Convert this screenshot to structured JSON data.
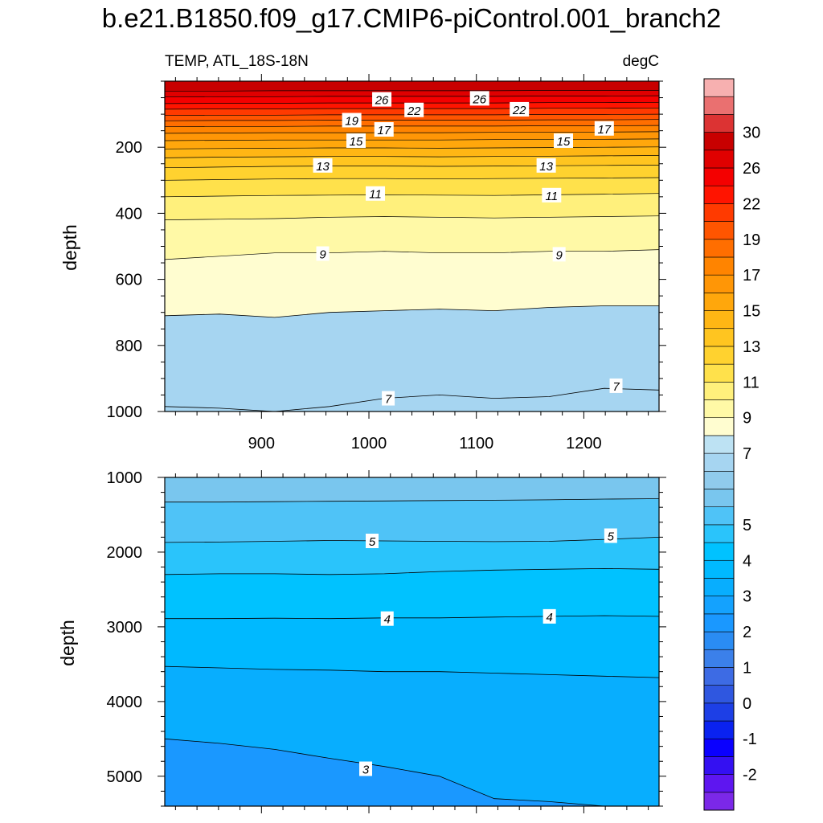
{
  "chart_data": {
    "type": "contour",
    "title": "b.e21.B1850.f09_g17.CMIP6-piControl.001_branch2",
    "left_string": "TEMP, ATL_18S-18N",
    "right_string": "degC",
    "x_range": [
      810,
      1270
    ],
    "x_ticks": [
      "900",
      "1000",
      "1100",
      "1200"
    ],
    "colorbar": {
      "levels": [
        -3,
        -2.5,
        -2,
        -1.5,
        -1,
        -0.5,
        0,
        0.5,
        1,
        1.5,
        2,
        2.5,
        3,
        3.5,
        4,
        4.5,
        5,
        5.5,
        6,
        6.5,
        7,
        8,
        9,
        10,
        11,
        12,
        13,
        14,
        15,
        16,
        17,
        18,
        19,
        20,
        22,
        24,
        26,
        28,
        30,
        32,
        34
      ],
      "labels": [
        "30",
        "26",
        "22",
        "19",
        "17",
        "15",
        "13",
        "11",
        "9",
        "7",
        "5",
        "4",
        "3",
        "2",
        "1",
        "0",
        "-1",
        "-2"
      ],
      "colors": [
        "#7b28e8",
        "#5e16f0",
        "#3410f2",
        "#0a00ff",
        "#0a22f0",
        "#1d3fe6",
        "#2f57e0",
        "#3d6be4",
        "#3b80ea",
        "#2a8cf3",
        "#1a98ff",
        "#14a2fe",
        "#08aefe",
        "#00b9ff",
        "#00c2ff",
        "#2ac4fb",
        "#4fc3f7",
        "#79c6ee",
        "#90cbec",
        "#a6d5f1",
        "#bde2f3",
        "#fffdd0",
        "#fff9a6",
        "#fff07c",
        "#ffe14b",
        "#ffd22f",
        "#ffc520",
        "#ffb614",
        "#ffa70c",
        "#ff9606",
        "#ff8400",
        "#ff6e00",
        "#ff5500",
        "#ff3a00",
        "#ff1400",
        "#f40000",
        "#e00000",
        "#c80000",
        "#dc3333",
        "#ea7070",
        "#f7b0b0"
      ]
    },
    "panels": [
      {
        "ylabel": "depth",
        "ylim": [
          0,
          1000
        ],
        "y_ticks": [
          "200",
          "400",
          "600",
          "800",
          "1000"
        ],
        "bottom_color": "#a6d5f1",
        "isolines": [
          {
            "v": 9,
            "y": [
              540,
              530,
              520,
              520,
              515,
              520,
              520,
              515,
              515,
              510
            ]
          },
          {
            "v": 10,
            "y": [
              420,
              418,
              416,
              412,
              410,
              412,
              414,
              412,
              410,
              408
            ]
          },
          {
            "v": 11,
            "y": [
              350,
              348,
              346,
              345,
              344,
              345,
              346,
              344,
              342,
              340
            ]
          },
          {
            "v": 12,
            "y": [
              300,
              298,
              296,
              295,
              295,
              296,
              295,
              294,
              293,
              292
            ]
          },
          {
            "v": 13,
            "y": [
              262,
              260,
              258,
              257,
              257,
              258,
              257,
              256,
              255,
              254
            ]
          },
          {
            "v": 14,
            "y": [
              232,
              230,
              229,
              228,
              228,
              229,
              228,
              227,
              226,
              225
            ]
          },
          {
            "v": 15,
            "y": [
              205,
              204,
              203,
              202,
              202,
              203,
              202,
              201,
              200,
              199
            ]
          },
          {
            "v": 16,
            "y": [
              180,
              179,
              178,
              178,
              178,
              178,
              177,
              176,
              176,
              175
            ]
          },
          {
            "v": 17,
            "y": [
              158,
              157,
              156,
              156,
              156,
              156,
              155,
              155,
              154,
              153
            ]
          },
          {
            "v": 18,
            "y": [
              138,
              137,
              137,
              136,
              136,
              136,
              136,
              135,
              135,
              134
            ]
          },
          {
            "v": 19,
            "y": [
              120,
              119,
              119,
              118,
              118,
              118,
              118,
              117,
              117,
              116
            ]
          },
          {
            "v": 20,
            "y": [
              104,
              103,
              103,
              102,
              102,
              102,
              102,
              101,
              101,
              100
            ]
          },
          {
            "v": 22,
            "y": [
              85,
              84,
              84,
              83,
              83,
              83,
              83,
              82,
              82,
              81
            ]
          },
          {
            "v": 24,
            "y": [
              68,
              67,
              67,
              66,
              66,
              66,
              66,
              65,
              65,
              64
            ]
          },
          {
            "v": 26,
            "y": [
              48,
              47,
              47,
              46,
              46,
              46,
              46,
              45,
              45,
              44
            ]
          },
          {
            "v": 28,
            "y": [
              30,
              30,
              29,
              29,
              29,
              29,
              29,
              28,
              28,
              28
            ]
          }
        ],
        "boundaries": [
          {
            "v": 7,
            "y": [
              710,
              705,
              715,
              700,
              695,
              690,
              695,
              685,
              680,
              680
            ]
          },
          {
            "v": 6.5,
            "y": [
              985,
              990,
              1000,
              985,
              960,
              950,
              960,
              955,
              930,
              935
            ]
          }
        ],
        "labels": [
          {
            "t": "26",
            "x": 1012,
            "y": 55
          },
          {
            "t": "26",
            "x": 1103,
            "y": 52
          },
          {
            "t": "22",
            "x": 1042,
            "y": 87
          },
          {
            "t": "22",
            "x": 1140,
            "y": 85
          },
          {
            "t": "19",
            "x": 984,
            "y": 118
          },
          {
            "t": "17",
            "x": 1014,
            "y": 146
          },
          {
            "t": "17",
            "x": 1219,
            "y": 143
          },
          {
            "t": "15",
            "x": 988,
            "y": 180
          },
          {
            "t": "15",
            "x": 1181,
            "y": 180
          },
          {
            "t": "13",
            "x": 957,
            "y": 255
          },
          {
            "t": "13",
            "x": 1165,
            "y": 255
          },
          {
            "t": "11",
            "x": 1006,
            "y": 340
          },
          {
            "t": "11",
            "x": 1170,
            "y": 345
          },
          {
            "t": "9",
            "x": 957,
            "y": 522
          },
          {
            "t": "9",
            "x": 1177,
            "y": 524
          },
          {
            "t": "7",
            "x": 1018,
            "y": 960
          },
          {
            "t": "7",
            "x": 1230,
            "y": 922
          }
        ]
      },
      {
        "ylabel": "depth",
        "ylim": [
          1000,
          5400
        ],
        "y_ticks": [
          "1000",
          "2000",
          "3000",
          "4000",
          "5000"
        ],
        "bottom_color": "#1a98ff",
        "boundaries": [
          {
            "v": 5.5,
            "y": [
              1330,
              1330,
              1325,
              1320,
              1315,
              1310,
              1305,
              1300,
              1290,
              1285
            ]
          },
          {
            "v": 5,
            "y": [
              1870,
              1865,
              1855,
              1845,
              1850,
              1855,
              1860,
              1855,
              1830,
              1800
            ]
          },
          {
            "v": 4.5,
            "y": [
              2300,
              2290,
              2290,
              2300,
              2290,
              2260,
              2240,
              2230,
              2220,
              2230
            ]
          },
          {
            "v": 4,
            "y": [
              2890,
              2890,
              2885,
              2890,
              2880,
              2880,
              2870,
              2860,
              2850,
              2860
            ]
          },
          {
            "v": 3.5,
            "y": [
              3530,
              3550,
              3570,
              3580,
              3600,
              3600,
              3620,
              3640,
              3660,
              3680
            ]
          },
          {
            "v": 3,
            "y": [
              4500,
              4560,
              4640,
              4760,
              4870,
              5000,
              5300,
              5340,
              5400,
              5500
            ]
          }
        ],
        "labels": [
          {
            "t": "5",
            "x": 1003,
            "y": 1850
          },
          {
            "t": "5",
            "x": 1225,
            "y": 1780
          },
          {
            "t": "4",
            "x": 1017,
            "y": 2890
          },
          {
            "t": "4",
            "x": 1168,
            "y": 2860
          },
          {
            "t": "3",
            "x": 997,
            "y": 4900
          }
        ]
      }
    ]
  }
}
